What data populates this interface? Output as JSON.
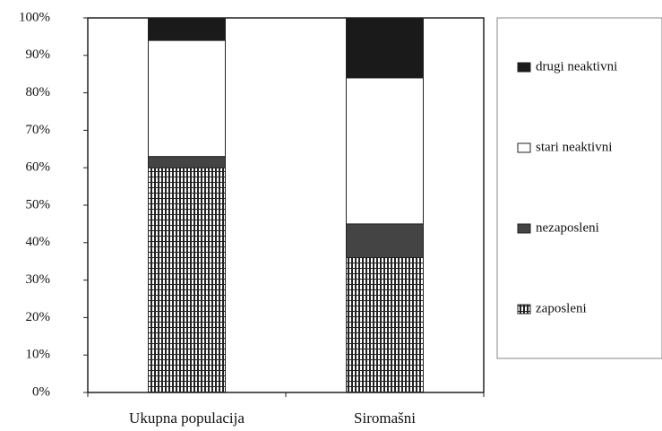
{
  "chart_data": {
    "type": "stacked_bar",
    "categories": [
      "Ukupna populacija",
      "Siromašni"
    ],
    "series": [
      {
        "name": "zaposleni",
        "color": "#222222",
        "pattern": "vertical-stripes",
        "values": [
          60,
          36
        ]
      },
      {
        "name": "nezaposleni",
        "color": "#444444",
        "values": [
          3,
          9
        ]
      },
      {
        "name": "stari neaktivni",
        "color": "#ffffff",
        "values": [
          31,
          39
        ]
      },
      {
        "name": "drugi neaktivni",
        "color": "#1a1a1a",
        "values": [
          6,
          16
        ]
      }
    ],
    "ylim": [
      0,
      100
    ],
    "yticks": [
      {
        "value": 0,
        "label": "0%"
      },
      {
        "value": 10,
        "label": "10%"
      },
      {
        "value": 20,
        "label": "20%"
      },
      {
        "value": 30,
        "label": "30%"
      },
      {
        "value": 40,
        "label": "40%"
      },
      {
        "value": 50,
        "label": "50%"
      },
      {
        "value": 60,
        "label": "60%"
      },
      {
        "value": 70,
        "label": "70%"
      },
      {
        "value": 80,
        "label": "80%"
      },
      {
        "value": 90,
        "label": "90%"
      },
      {
        "value": 100,
        "label": "100%"
      }
    ],
    "legend": "right"
  }
}
